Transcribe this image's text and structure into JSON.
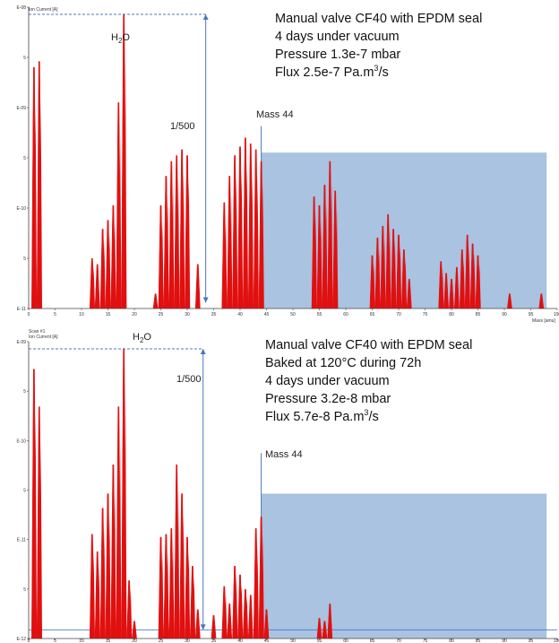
{
  "chart_data": [
    {
      "type": "bar",
      "scan_label": "",
      "ylabel": "Ion Current [A]",
      "xlabel": "Mass [amu]",
      "ytick_labels": [
        "E-08",
        "5",
        "E-09",
        "5",
        "E-10",
        "5",
        "E-11"
      ],
      "xticks": [
        0,
        5,
        10,
        15,
        20,
        25,
        30,
        35,
        40,
        45,
        50,
        55,
        60,
        65,
        70,
        75,
        80,
        85,
        90,
        95,
        100
      ],
      "xlim": [
        0,
        100
      ],
      "log_decades_shown": 3,
      "series_color": "#e01010",
      "highlight_color": "#a9c3e0",
      "notes": [
        "Manual valve CF40 with EPDM seal",
        "4 days under vacuum",
        "Pressure 1.3e-7 mbar",
        "Flux 2.5e-7 Pa.m",
        "3",
        "/s"
      ],
      "peak_label": {
        "base": "H",
        "sub": "2",
        "tail": "O"
      },
      "ratio_label": "1/500",
      "mass_label": "Mass 44",
      "highlight": {
        "from_mass": 44,
        "to_mass": 98
      },
      "peaks_mass": [
        1,
        2,
        12,
        13,
        14,
        15,
        16,
        17,
        18,
        24,
        25,
        26,
        27,
        28,
        29,
        30,
        32,
        37,
        38,
        39,
        40,
        41,
        42,
        43,
        44,
        54,
        55,
        56,
        57,
        58,
        65,
        66,
        67,
        68,
        69,
        70,
        71,
        72,
        78,
        79,
        80,
        81,
        82,
        83,
        84,
        85,
        91,
        97
      ],
      "peaks_height": [
        0.82,
        0.84,
        0.17,
        0.15,
        0.27,
        0.3,
        0.35,
        0.7,
        1.0,
        0.05,
        0.35,
        0.45,
        0.5,
        0.52,
        0.54,
        0.52,
        0.15,
        0.36,
        0.45,
        0.52,
        0.55,
        0.58,
        0.56,
        0.54,
        0.5,
        0.38,
        0.35,
        0.42,
        0.5,
        0.4,
        0.18,
        0.24,
        0.28,
        0.32,
        0.27,
        0.25,
        0.2,
        0.1,
        0.16,
        0.12,
        0.1,
        0.14,
        0.2,
        0.25,
        0.22,
        0.18,
        0.05,
        0.05
      ],
      "markers": {
        "ratio_top": 1.0,
        "ratio_bottom": 0.02
      }
    },
    {
      "type": "bar",
      "scan_label": "Scan #1",
      "ylabel": "Ion Current [A]",
      "xlabel": "",
      "ytick_labels": [
        "E-09",
        "5",
        "E-10",
        "5",
        "E-11",
        "5",
        "E-12"
      ],
      "xticks": [
        0,
        5,
        10,
        15,
        20,
        25,
        30,
        35,
        40,
        45,
        50,
        55,
        60,
        65,
        70,
        75,
        80,
        85,
        90,
        95,
        100
      ],
      "xlim": [
        0,
        100
      ],
      "log_decades_shown": 3,
      "series_color": "#e01010",
      "highlight_color": "#a9c3e0",
      "notes": [
        "Manual valve CF40 with EPDM seal",
        "Baked at 120°C during 72h",
        "4 days under vacuum",
        "Pressure 3.2e-8 mbar",
        "Flux 5.7e-8 Pa.m",
        "3",
        "/s"
      ],
      "peak_label": {
        "base": "H",
        "sub": "2",
        "tail": "O"
      },
      "ratio_label": "1/500",
      "mass_label": "Mass 44",
      "highlight": {
        "from_mass": 44,
        "to_mass": 98
      },
      "peaks_mass": [
        1,
        2,
        12,
        13,
        14,
        15,
        16,
        17,
        18,
        19,
        20,
        25,
        26,
        27,
        28,
        29,
        30,
        31,
        32,
        35,
        37,
        38,
        39,
        40,
        41,
        42,
        43,
        44,
        45,
        55,
        56,
        57
      ],
      "peaks_height": [
        0.93,
        0.8,
        0.36,
        0.3,
        0.45,
        0.5,
        0.6,
        0.8,
        1.0,
        0.2,
        0.06,
        0.35,
        0.36,
        0.38,
        0.6,
        0.5,
        0.35,
        0.25,
        0.1,
        0.08,
        0.18,
        0.12,
        0.25,
        0.22,
        0.17,
        0.15,
        0.38,
        0.42,
        0.1,
        0.07,
        0.06,
        0.12
      ],
      "markers": {
        "ratio_top": 1.0,
        "ratio_bottom": 0.03
      }
    }
  ]
}
